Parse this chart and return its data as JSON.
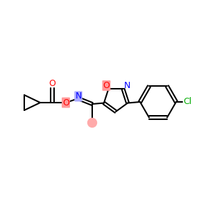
{
  "background_color": "#ffffff",
  "atom_colors": {
    "O": "#ff0000",
    "N": "#0000ff",
    "Cl": "#00aa00",
    "C": "#000000"
  },
  "bond_color": "#000000",
  "highlight_O": "#ff9999",
  "highlight_N": "#aaaaff",
  "bond_lw": 1.5,
  "font_size": 9
}
